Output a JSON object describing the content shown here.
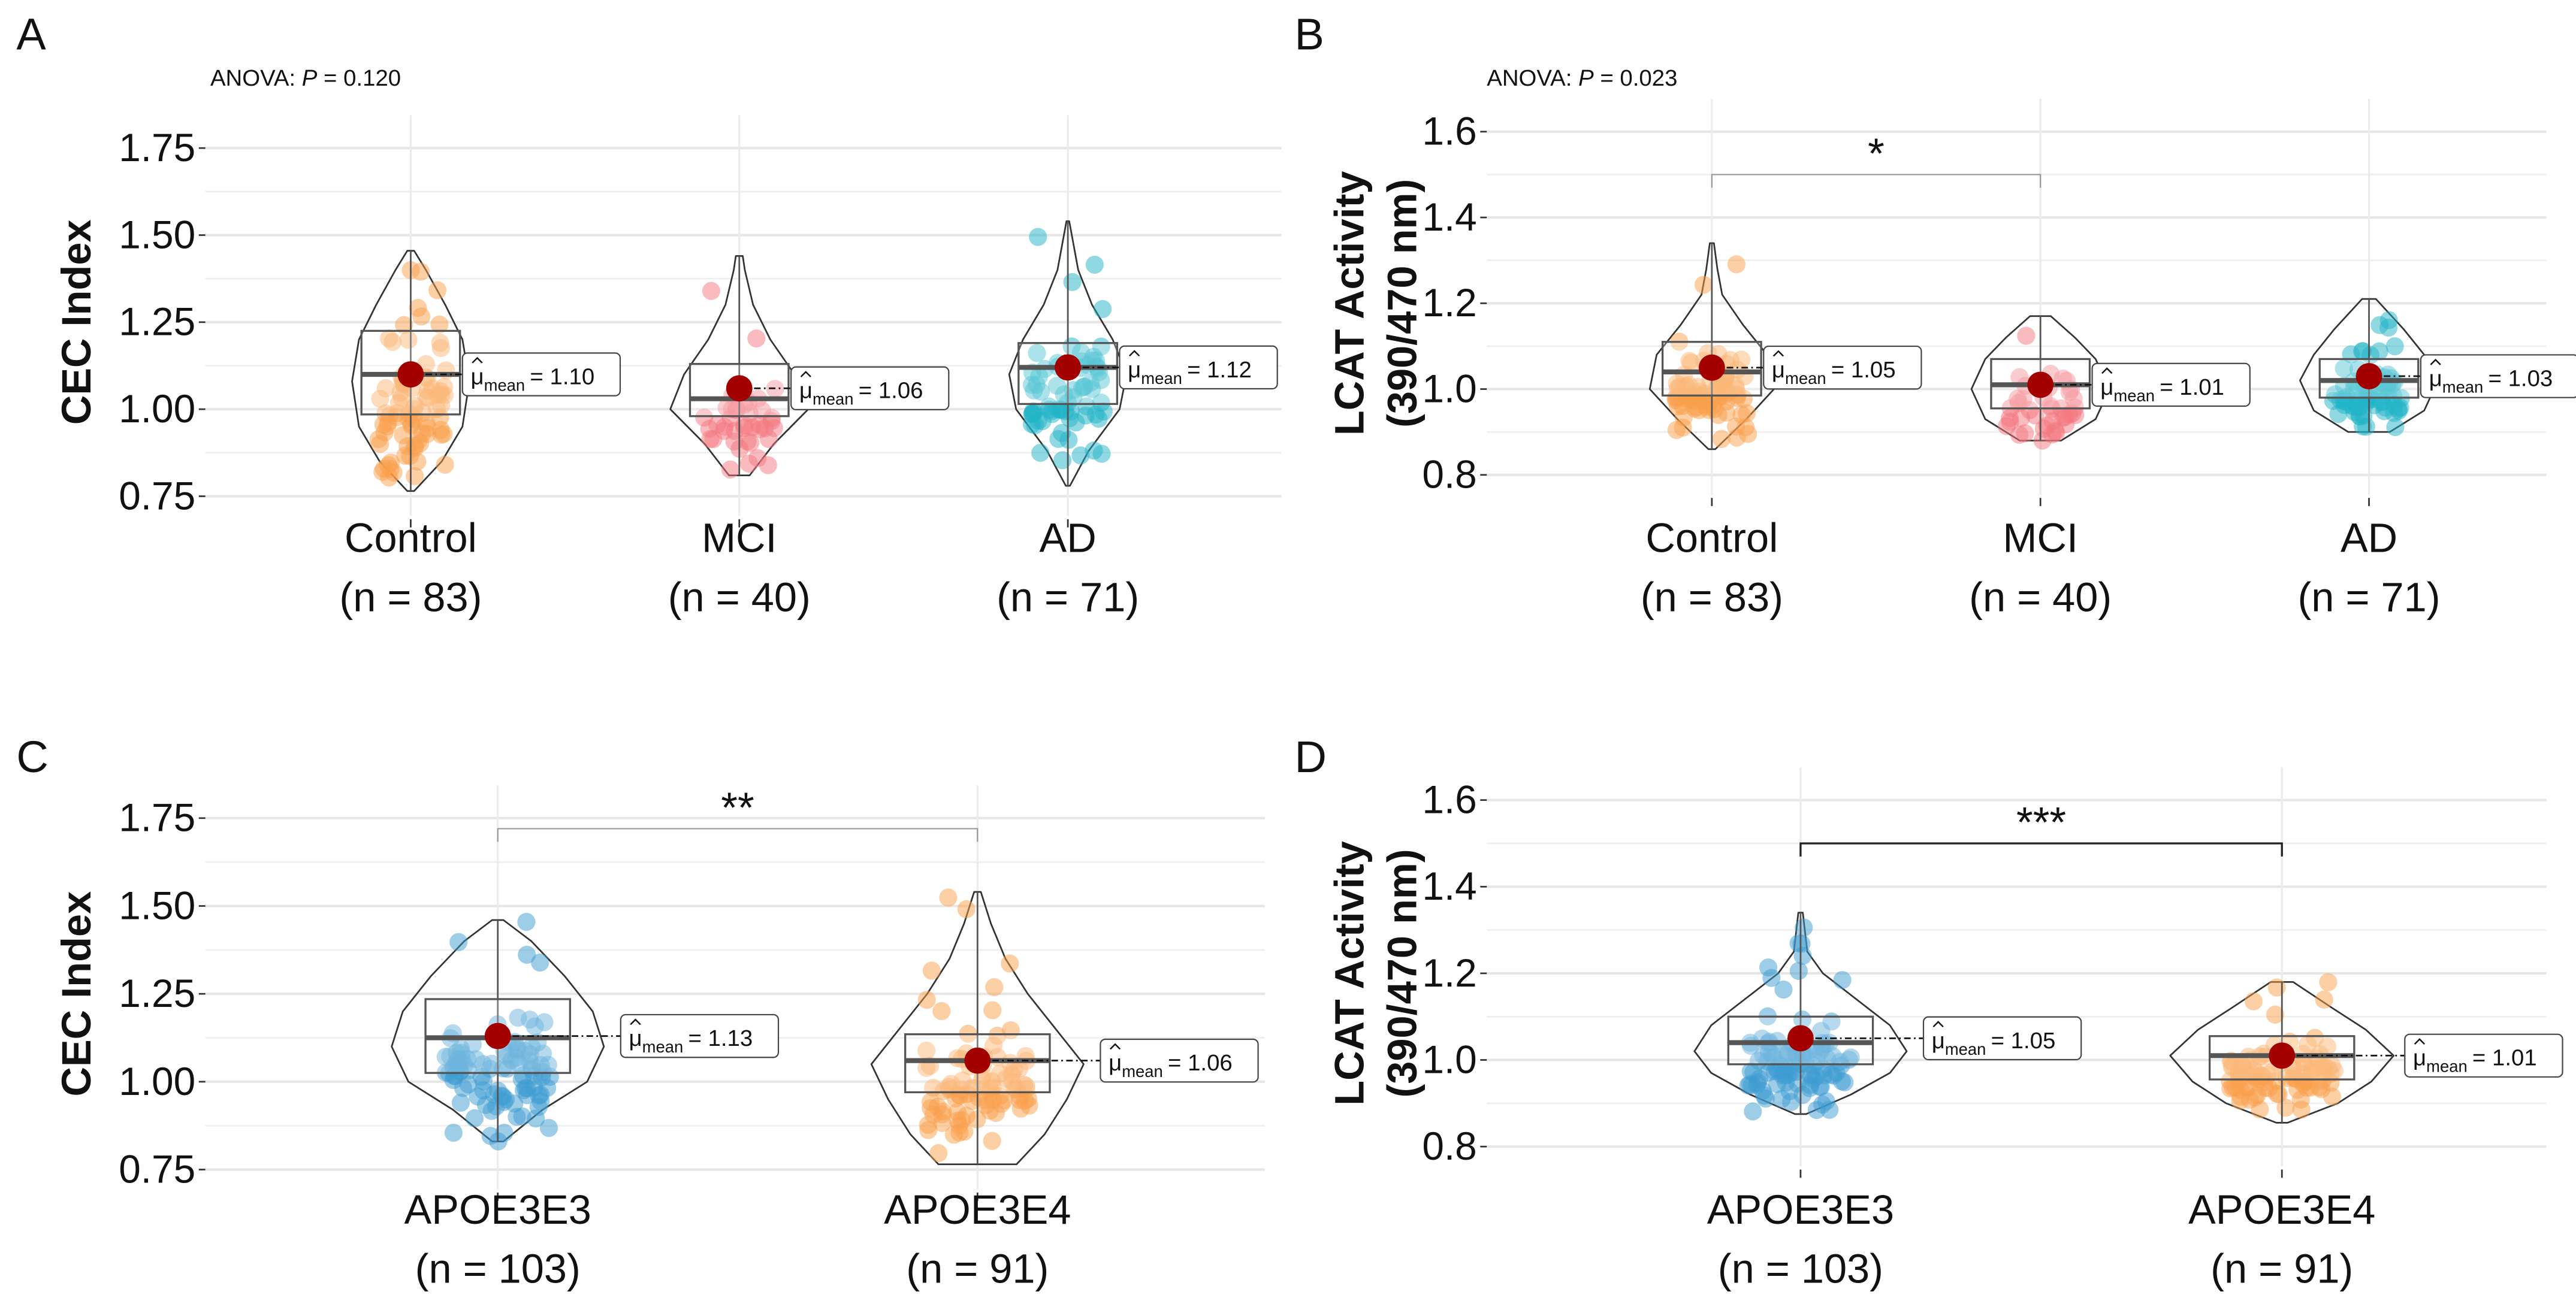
{
  "chart_data": [
    {
      "type": "violin",
      "panel": "A",
      "anova": {
        "prefix": "ANOVA: ",
        "p_label": "P",
        "value": " = 0.120"
      },
      "ylabel": [
        "CEC Index"
      ],
      "ylim": [
        0.75,
        1.75
      ],
      "yticks": [
        0.75,
        1.0,
        1.25,
        1.5,
        1.75
      ],
      "ytick_labels": [
        "0.75",
        "1.00",
        "1.25",
        "1.50",
        "1.75"
      ],
      "minor_grid": [
        0.875,
        1.125,
        1.375,
        1.625
      ],
      "groups": [
        {
          "name": "Control",
          "n_label": "(n = 83)",
          "n": 83,
          "color": "#F9A04B",
          "min": 0.765,
          "q1": 0.985,
          "median": 1.1,
          "q3": 1.225,
          "max": 1.455,
          "mean": 1.1,
          "mean_label": "= 1.10",
          "profile": [
            [
              0.765,
              0.05
            ],
            [
              0.85,
              0.45
            ],
            [
              0.95,
              0.75
            ],
            [
              1.08,
              0.85
            ],
            [
              1.2,
              0.75
            ],
            [
              1.3,
              0.5
            ],
            [
              1.4,
              0.22
            ],
            [
              1.455,
              0.05
            ]
          ]
        },
        {
          "name": "MCI",
          "n_label": "(n = 40)",
          "n": 40,
          "color": "#F4777F",
          "min": 0.81,
          "q1": 0.98,
          "median": 1.03,
          "q3": 1.13,
          "max": 1.44,
          "mean": 1.06,
          "mean_label": "= 1.06",
          "profile": [
            [
              0.81,
              0.15
            ],
            [
              0.9,
              0.5
            ],
            [
              1.0,
              1.0
            ],
            [
              1.1,
              0.8
            ],
            [
              1.2,
              0.45
            ],
            [
              1.3,
              0.2
            ],
            [
              1.4,
              0.08
            ],
            [
              1.44,
              0.05
            ]
          ]
        },
        {
          "name": "AD",
          "n_label": "(n = 71)",
          "n": 71,
          "color": "#22B4C8",
          "min": 0.78,
          "q1": 1.015,
          "median": 1.12,
          "q3": 1.19,
          "max": 1.54,
          "mean": 1.12,
          "mean_label": "= 1.12",
          "profile": [
            [
              0.78,
              0.03
            ],
            [
              0.88,
              0.3
            ],
            [
              1.0,
              0.75
            ],
            [
              1.1,
              0.85
            ],
            [
              1.2,
              0.65
            ],
            [
              1.3,
              0.35
            ],
            [
              1.4,
              0.15
            ],
            [
              1.54,
              0.02
            ]
          ]
        }
      ]
    },
    {
      "type": "violin",
      "panel": "B",
      "anova": {
        "prefix": "ANOVA: ",
        "p_label": "P",
        "value": " = 0.023"
      },
      "ylabel": [
        "LCAT Activity",
        "(390/470 nm)"
      ],
      "ylim": [
        0.8,
        1.6
      ],
      "yticks": [
        0.8,
        1.0,
        1.2,
        1.4,
        1.6
      ],
      "ytick_labels": [
        "0.8",
        "1.0",
        "1.2",
        "1.4",
        "1.6"
      ],
      "minor_grid": [
        0.9,
        1.1,
        1.3,
        1.5
      ],
      "significance": {
        "from": 0,
        "to": 1,
        "y": 1.5,
        "label": "*"
      },
      "groups": [
        {
          "name": "Control",
          "n_label": "(n = 83)",
          "n": 83,
          "color": "#F9A04B",
          "min": 0.86,
          "q1": 0.985,
          "median": 1.04,
          "q3": 1.11,
          "max": 1.34,
          "mean": 1.05,
          "mean_label": "= 1.05",
          "profile": [
            [
              0.86,
              0.05
            ],
            [
              0.93,
              0.5
            ],
            [
              1.0,
              0.9
            ],
            [
              1.08,
              0.8
            ],
            [
              1.15,
              0.45
            ],
            [
              1.22,
              0.15
            ],
            [
              1.28,
              0.08
            ],
            [
              1.34,
              0.03
            ]
          ]
        },
        {
          "name": "MCI",
          "n_label": "(n = 40)",
          "n": 40,
          "color": "#F4777F",
          "min": 0.88,
          "q1": 0.955,
          "median": 1.01,
          "q3": 1.07,
          "max": 1.17,
          "mean": 1.01,
          "mean_label": "= 1.01",
          "profile": [
            [
              0.88,
              0.3
            ],
            [
              0.93,
              0.8
            ],
            [
              1.0,
              1.0
            ],
            [
              1.07,
              0.8
            ],
            [
              1.12,
              0.5
            ],
            [
              1.17,
              0.15
            ]
          ]
        },
        {
          "name": "AD",
          "n_label": "(n = 71)",
          "n": 71,
          "color": "#22B4C8",
          "min": 0.9,
          "q1": 0.98,
          "median": 1.02,
          "q3": 1.07,
          "max": 1.21,
          "mean": 1.03,
          "mean_label": "= 1.03",
          "profile": [
            [
              0.9,
              0.3
            ],
            [
              0.95,
              0.8
            ],
            [
              1.02,
              1.0
            ],
            [
              1.08,
              0.8
            ],
            [
              1.14,
              0.5
            ],
            [
              1.21,
              0.1
            ]
          ]
        }
      ]
    },
    {
      "type": "violin",
      "panel": "C",
      "ylabel": [
        "CEC Index"
      ],
      "ylim": [
        0.75,
        1.75
      ],
      "yticks": [
        0.75,
        1.0,
        1.25,
        1.5,
        1.75
      ],
      "ytick_labels": [
        "0.75",
        "1.00",
        "1.25",
        "1.50",
        "1.75"
      ],
      "minor_grid": [
        0.875,
        1.125,
        1.375,
        1.625
      ],
      "significance": {
        "from": 0,
        "to": 1,
        "y": 1.72,
        "label": "**"
      },
      "groups": [
        {
          "name": "APOE3E3",
          "n_label": "(n = 103)",
          "n": 103,
          "color": "#3D9BD2",
          "min": 0.83,
          "q1": 1.025,
          "median": 1.125,
          "q3": 1.235,
          "max": 1.46,
          "mean": 1.13,
          "mean_label": "= 1.13",
          "profile": [
            [
              0.83,
              0.05
            ],
            [
              0.92,
              0.4
            ],
            [
              1.0,
              0.8
            ],
            [
              1.1,
              0.95
            ],
            [
              1.2,
              0.85
            ],
            [
              1.3,
              0.6
            ],
            [
              1.4,
              0.3
            ],
            [
              1.46,
              0.05
            ]
          ]
        },
        {
          "name": "APOE3E4",
          "n_label": "(n = 91)",
          "n": 91,
          "color": "#F9A04B",
          "min": 0.765,
          "q1": 0.97,
          "median": 1.06,
          "q3": 1.135,
          "max": 1.54,
          "mean": 1.06,
          "mean_label": "= 1.06",
          "profile": [
            [
              0.765,
              0.35
            ],
            [
              0.85,
              0.6
            ],
            [
              0.95,
              0.8
            ],
            [
              1.05,
              0.95
            ],
            [
              1.15,
              0.7
            ],
            [
              1.25,
              0.45
            ],
            [
              1.35,
              0.25
            ],
            [
              1.45,
              0.12
            ],
            [
              1.54,
              0.03
            ]
          ]
        }
      ]
    },
    {
      "type": "violin",
      "panel": "D",
      "ylabel": [
        "LCAT Activity",
        "(390/470 nm)"
      ],
      "ylim": [
        0.8,
        1.6
      ],
      "yticks": [
        0.8,
        1.0,
        1.2,
        1.4,
        1.6
      ],
      "ytick_labels": [
        "0.8",
        "1.0",
        "1.2",
        "1.4",
        "1.6"
      ],
      "minor_grid": [
        0.9,
        1.1,
        1.3,
        1.5
      ],
      "significance": {
        "from": 0,
        "to": 1,
        "y": 1.5,
        "label": "***"
      },
      "groups": [
        {
          "name": "APOE3E3",
          "n_label": "(n = 103)",
          "n": 103,
          "color": "#3D9BD2",
          "min": 0.875,
          "q1": 0.99,
          "median": 1.04,
          "q3": 1.1,
          "max": 1.34,
          "mean": 1.05,
          "mean_label": "= 1.05",
          "profile": [
            [
              0.875,
              0.05
            ],
            [
              0.92,
              0.45
            ],
            [
              0.97,
              0.8
            ],
            [
              1.02,
              0.95
            ],
            [
              1.08,
              0.8
            ],
            [
              1.14,
              0.5
            ],
            [
              1.2,
              0.2
            ],
            [
              1.25,
              0.06
            ],
            [
              1.34,
              0.02
            ]
          ]
        },
        {
          "name": "APOE3E4",
          "n_label": "(n = 91)",
          "n": 91,
          "color": "#F9A04B",
          "min": 0.855,
          "q1": 0.955,
          "median": 1.01,
          "q3": 1.055,
          "max": 1.18,
          "mean": 1.01,
          "mean_label": "= 1.01",
          "profile": [
            [
              0.855,
              0.05
            ],
            [
              0.9,
              0.5
            ],
            [
              0.95,
              0.8
            ],
            [
              1.01,
              1.0
            ],
            [
              1.07,
              0.75
            ],
            [
              1.12,
              0.45
            ],
            [
              1.18,
              0.1
            ]
          ]
        }
      ]
    }
  ],
  "mean_symbol": "μ",
  "mean_sub": "mean"
}
